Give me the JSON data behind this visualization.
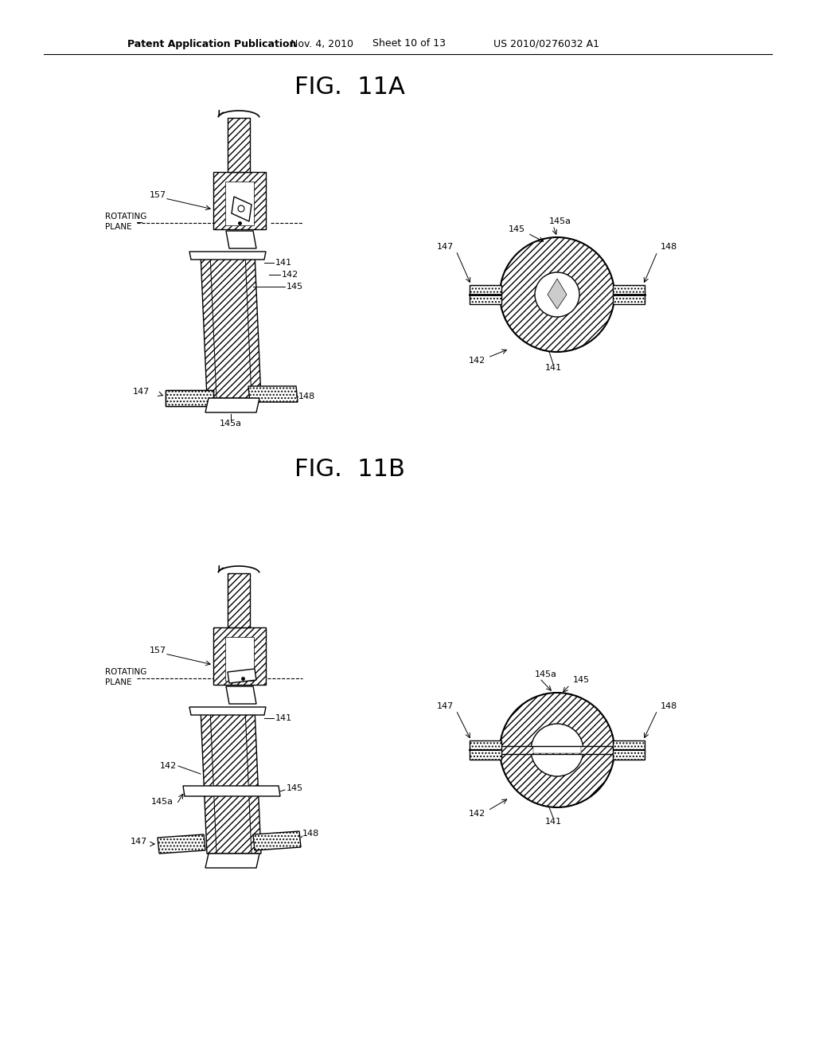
{
  "background_color": "#ffffff",
  "header_text": "Patent Application Publication",
  "header_date": "Nov. 4, 2010",
  "header_sheet": "Sheet 10 of 13",
  "header_patent": "US 2010/0276032 A1",
  "fig_11a_title": "FIG.  11A",
  "fig_11b_title": "FIG.  11B"
}
